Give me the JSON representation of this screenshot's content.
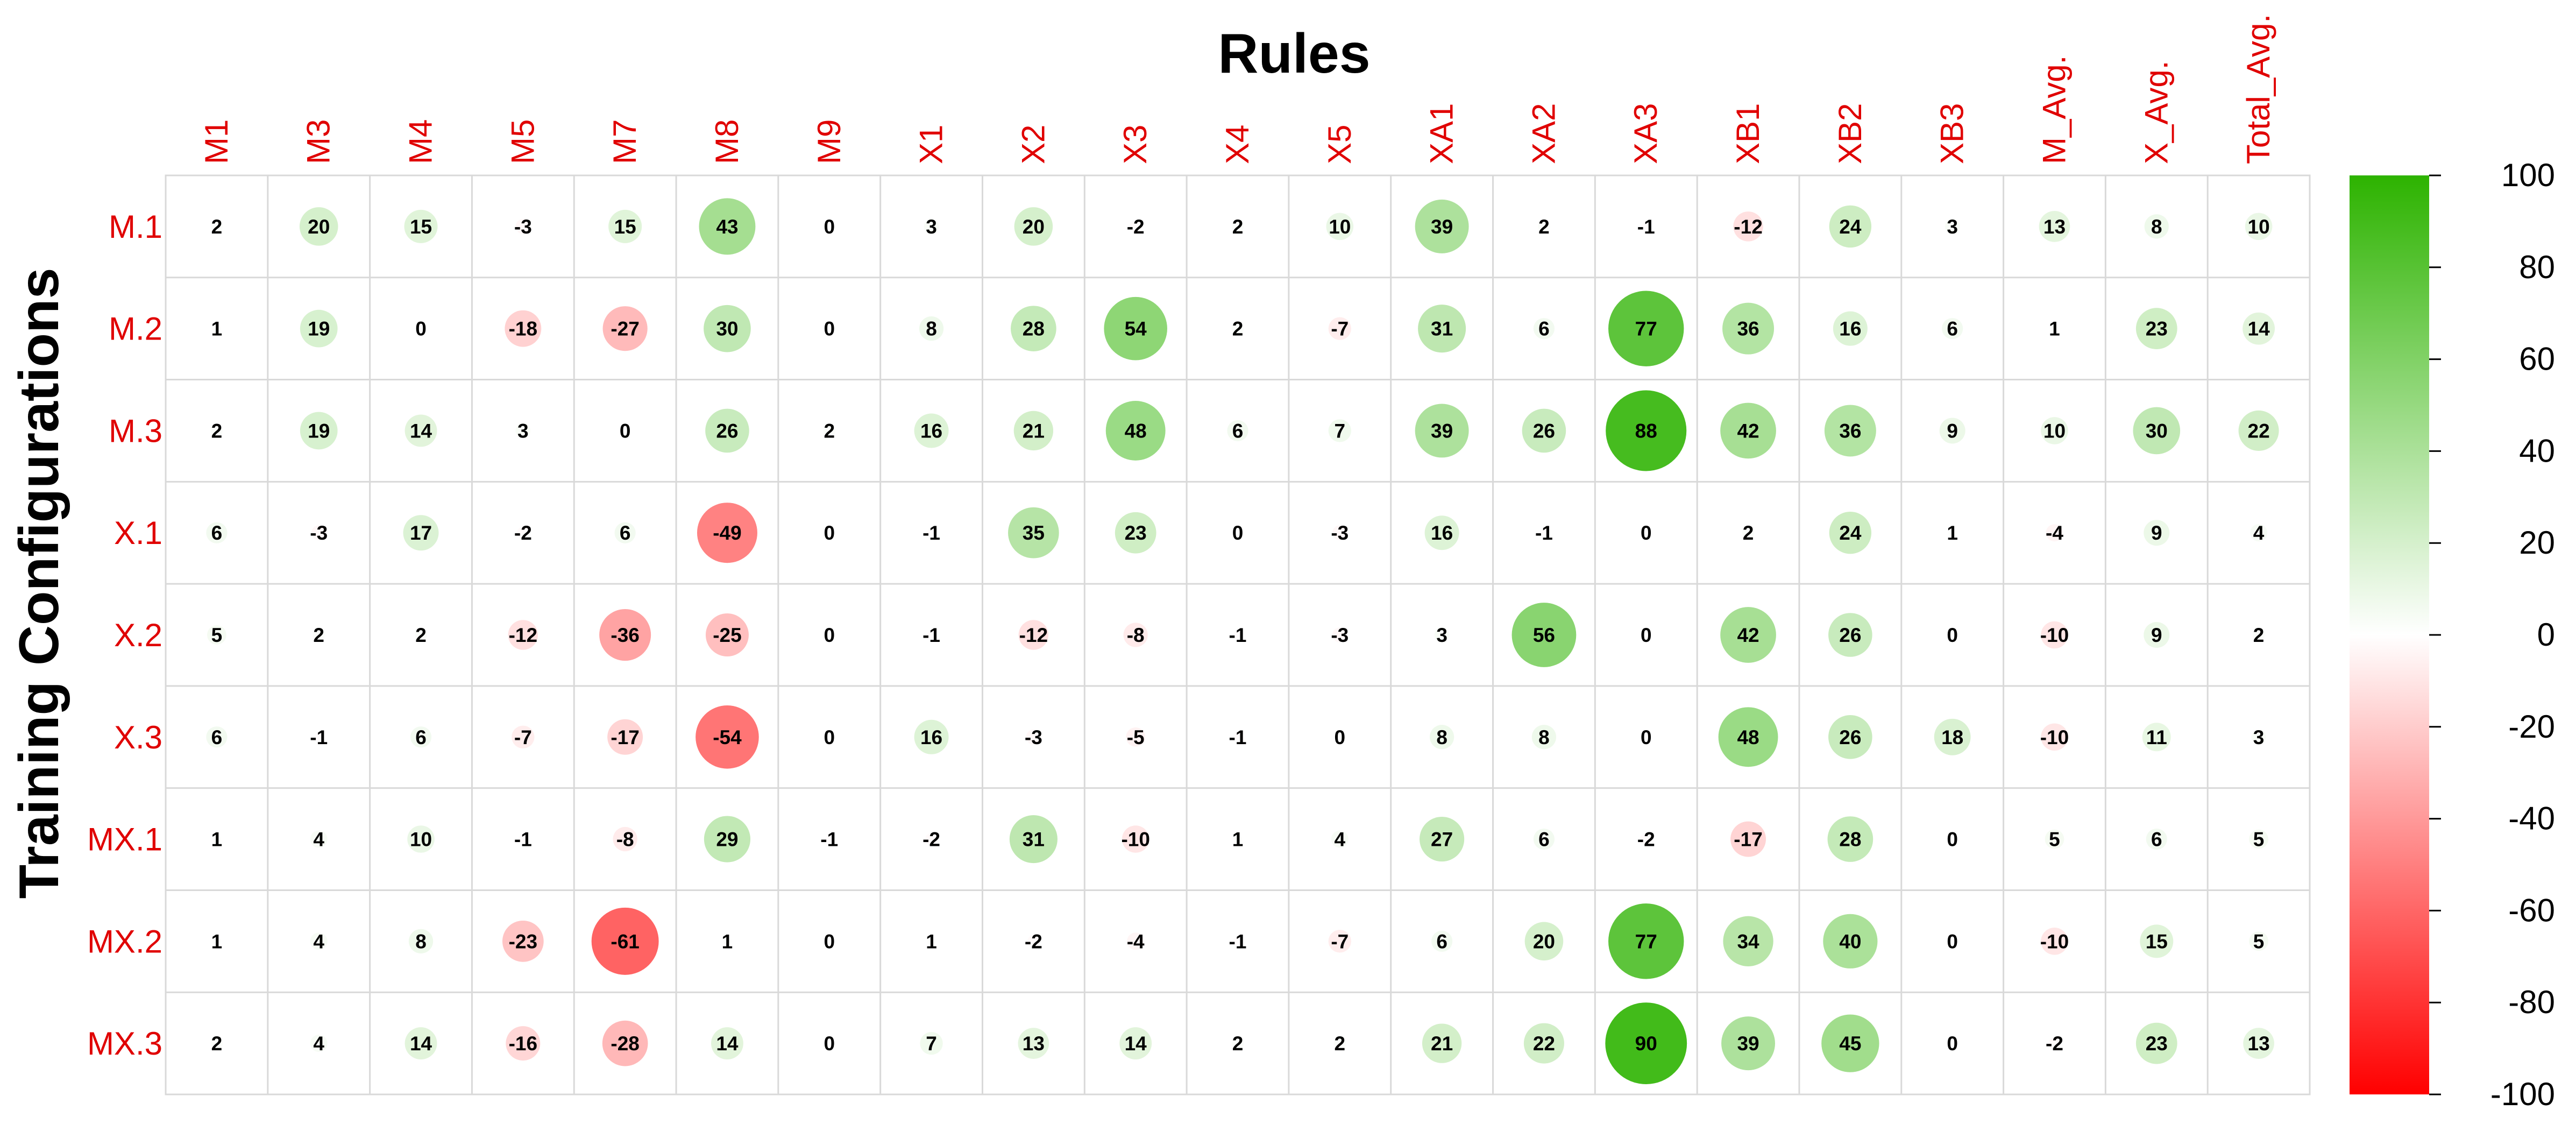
{
  "chart_data": {
    "type": "heatmap",
    "title": "Rules",
    "ylabel": "Training Configurations",
    "columns": [
      "M1",
      "M3",
      "M4",
      "M5",
      "M7",
      "M8",
      "M9",
      "X1",
      "X2",
      "X3",
      "X4",
      "X5",
      "XA1",
      "XA2",
      "XA3",
      "XB1",
      "XB2",
      "XB3",
      "M_Avg.",
      "X_Avg.",
      "Total_Avg."
    ],
    "rows": [
      "M.1",
      "M.2",
      "M.3",
      "X.1",
      "X.2",
      "X.3",
      "MX.1",
      "MX.2",
      "MX.3"
    ],
    "values": [
      [
        2,
        20,
        15,
        -3,
        15,
        43,
        0,
        3,
        20,
        -2,
        2,
        10,
        39,
        2,
        -1,
        -12,
        24,
        3,
        13,
        8,
        10
      ],
      [
        1,
        19,
        0,
        -18,
        -27,
        30,
        0,
        8,
        28,
        54,
        2,
        -7,
        31,
        6,
        77,
        36,
        16,
        6,
        1,
        23,
        14
      ],
      [
        2,
        19,
        14,
        3,
        0,
        26,
        2,
        16,
        21,
        48,
        6,
        7,
        39,
        26,
        88,
        42,
        36,
        9,
        10,
        30,
        22
      ],
      [
        6,
        -3,
        17,
        -2,
        6,
        -49,
        0,
        -1,
        35,
        23,
        0,
        -3,
        16,
        -1,
        0,
        2,
        24,
        1,
        -4,
        9,
        4
      ],
      [
        5,
        2,
        2,
        -12,
        -36,
        -25,
        0,
        -1,
        -12,
        -8,
        -1,
        -3,
        3,
        56,
        0,
        42,
        26,
        0,
        -10,
        9,
        2
      ],
      [
        6,
        -1,
        6,
        -7,
        -17,
        -54,
        0,
        16,
        -3,
        -5,
        -1,
        0,
        8,
        8,
        0,
        48,
        26,
        18,
        -10,
        11,
        3
      ],
      [
        1,
        4,
        10,
        -1,
        -8,
        29,
        -1,
        -2,
        31,
        -10,
        1,
        4,
        27,
        6,
        -2,
        -17,
        28,
        0,
        5,
        6,
        5
      ],
      [
        1,
        4,
        8,
        -23,
        -61,
        1,
        0,
        1,
        -2,
        -4,
        -1,
        -7,
        6,
        20,
        77,
        34,
        40,
        0,
        -10,
        15,
        5
      ],
      [
        2,
        4,
        14,
        -16,
        -28,
        14,
        0,
        7,
        13,
        14,
        2,
        2,
        21,
        22,
        90,
        39,
        45,
        0,
        -2,
        23,
        13
      ]
    ],
    "colorbar": {
      "range": [
        -100,
        100
      ],
      "ticks": [
        "100",
        "80",
        "60",
        "40",
        "20",
        "0",
        "-20",
        "-40",
        "-60",
        "-80",
        "-100"
      ],
      "colors": {
        "high": "#2db300",
        "mid": "#ffffff",
        "low": "#ff0000"
      }
    },
    "label_color": "#e00000",
    "grid": true
  }
}
